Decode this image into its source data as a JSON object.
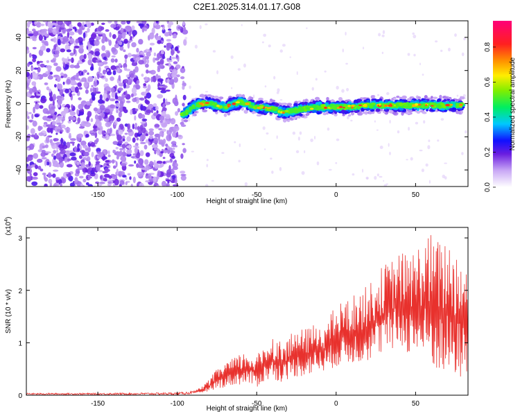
{
  "figure_title": "C2E1.2025.314.01.17.G08",
  "colors": {
    "snr_line": "#e8312d",
    "axis": "#000000",
    "background": "#ffffff"
  },
  "chart_data": [
    {
      "type": "heatmap",
      "title": "C2E1.2025.314.01.17.G08",
      "xlabel": "Height of straight line (km)",
      "ylabel": "Frequency (Hz)",
      "xlim": [
        -195,
        83
      ],
      "ylim": [
        -50,
        50
      ],
      "xticks": [
        -150,
        -100,
        -50,
        0,
        50
      ],
      "xtick_labels": [
        "-150",
        "-100",
        "-50",
        "0",
        "50"
      ],
      "yticks": [
        -40,
        -20,
        0,
        20,
        40
      ],
      "ytick_labels": [
        "-40",
        "-20",
        "0",
        "20",
        "40"
      ],
      "noise_region_x": [
        -195,
        -95
      ],
      "ridge": {
        "x": [
          -97,
          -90,
          -85,
          -80,
          -70,
          -60,
          -50,
          -40,
          -35,
          -30,
          -20,
          -10,
          0,
          10,
          20,
          30,
          40,
          50,
          60,
          70,
          80
        ],
        "freq": [
          -7,
          -2,
          0,
          0,
          -2,
          1,
          -2,
          -3,
          -5,
          -5,
          -3,
          -2,
          -2,
          -2,
          -1,
          -1,
          -1,
          -1,
          -1,
          -1,
          -1
        ]
      },
      "colorbar": {
        "label": "Normalized spectral amplitude",
        "range": [
          0.0,
          0.95
        ],
        "ticks": [
          0.0,
          0.2,
          0.4,
          0.6,
          0.8
        ],
        "tick_labels": [
          "0.0",
          "0.2",
          "0.4",
          "0.6",
          "0.8"
        ]
      }
    },
    {
      "type": "line",
      "xlabel": "Height of straight line (km)",
      "ylabel": "SNR (10 * v/v)",
      "y_multiplier_label": "(x10",
      "y_multiplier_exp": "4",
      "y_multiplier_close": ")",
      "xlim": [
        -195,
        83
      ],
      "ylim": [
        0,
        3.2
      ],
      "xticks": [
        -150,
        -100,
        -50,
        0,
        50
      ],
      "xtick_labels": [
        "-150",
        "-100",
        "-50",
        "0",
        "50"
      ],
      "yticks": [
        0,
        1,
        2,
        3
      ],
      "ytick_labels": [
        "0",
        "1",
        "2",
        "3"
      ],
      "series": [
        {
          "name": "SNR",
          "x": [
            -195,
            -150,
            -100,
            -90,
            -85,
            -80,
            -75,
            -70,
            -65,
            -60,
            -55,
            -50,
            -45,
            -40,
            -35,
            -30,
            -25,
            -20,
            -15,
            -10,
            -5,
            0,
            5,
            10,
            15,
            20,
            25,
            30,
            35,
            40,
            45,
            50,
            55,
            60,
            65,
            70,
            75,
            80
          ],
          "envelope_max": [
            0.04,
            0.04,
            0.05,
            0.08,
            0.15,
            0.3,
            0.5,
            0.65,
            0.7,
            0.8,
            0.85,
            0.75,
            1.0,
            1.15,
            1.05,
            1.1,
            1.3,
            1.25,
            1.35,
            1.4,
            1.45,
            1.75,
            1.8,
            1.9,
            2.0,
            2.1,
            2.3,
            2.5,
            2.6,
            2.75,
            2.7,
            2.8,
            3.05,
            3.1,
            2.95,
            3.05,
            2.85,
            2.7
          ],
          "envelope_min": [
            0.01,
            0.01,
            0.01,
            0.02,
            0.04,
            0.08,
            0.12,
            0.15,
            0.18,
            0.2,
            0.2,
            0.15,
            0.25,
            0.3,
            0.25,
            0.3,
            0.35,
            0.35,
            0.4,
            0.45,
            0.45,
            0.55,
            0.55,
            0.6,
            0.6,
            0.65,
            0.7,
            0.8,
            0.8,
            0.9,
            0.8,
            0.7,
            0.6,
            0.5,
            0.4,
            0.3,
            0.3,
            0.3
          ]
        }
      ]
    }
  ]
}
